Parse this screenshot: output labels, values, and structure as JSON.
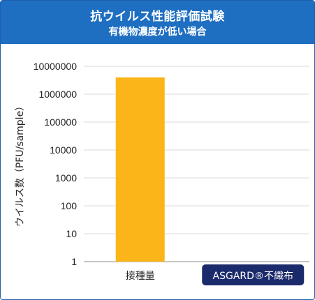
{
  "header": {
    "title": "抗ウイルス性能評価試験",
    "subtitle": "有機物濃度が低い場合"
  },
  "chart_data": {
    "type": "bar",
    "scale": "log",
    "ylabel": "ウイルス数（PFU/sample）",
    "xlabel": "",
    "ylim": [
      1,
      10000000
    ],
    "y_ticks": [
      "10000000",
      "1000000",
      "100000",
      "10000",
      "1000",
      "100",
      "10",
      "1"
    ],
    "y_tick_values": [
      10000000,
      1000000,
      100000,
      10000,
      1000,
      100,
      10,
      1
    ],
    "categories": [
      "接種量",
      "ASGARD®不織布"
    ],
    "values": [
      4000000,
      1
    ],
    "grid": true,
    "colors": {
      "bar": "#fbb518",
      "header": "#1e6ec1",
      "badge": "#1b2a6b",
      "grid": "#d9d9d9",
      "axis": "#8c8c8c"
    }
  }
}
